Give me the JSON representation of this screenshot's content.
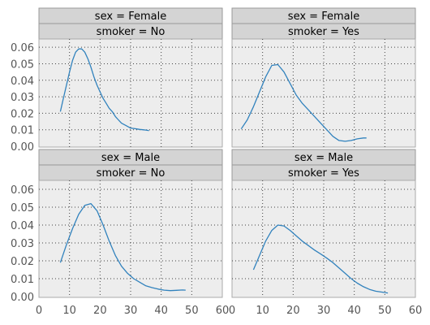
{
  "chart_data": {
    "type": "line",
    "layout": "facet-grid 2x2",
    "x_ticks": [
      0,
      10,
      20,
      30,
      40,
      50,
      60
    ],
    "y_ticks": [
      0.0,
      0.01,
      0.02,
      0.03,
      0.04,
      0.05,
      0.06
    ],
    "xlim": [
      0,
      60
    ],
    "ylim": [
      0,
      0.065
    ],
    "grid": "dotted",
    "line_color": "#3182bd",
    "panel_background": "#ededed",
    "strip_background": "#d4d4d4",
    "panels": [
      {
        "strip_row": "sex = Female",
        "strip_col": "smoker = No",
        "x": [
          7,
          8,
          9,
          10,
          11,
          12,
          13,
          14,
          15,
          16,
          17,
          18,
          19,
          20,
          21,
          22,
          23,
          24,
          25,
          26,
          27,
          28,
          29,
          30,
          31,
          32,
          33,
          34,
          35,
          36
        ],
        "y": [
          0.021,
          0.029,
          0.037,
          0.045,
          0.052,
          0.057,
          0.059,
          0.059,
          0.057,
          0.053,
          0.048,
          0.042,
          0.037,
          0.033,
          0.029,
          0.026,
          0.023,
          0.021,
          0.018,
          0.016,
          0.014,
          0.013,
          0.012,
          0.011,
          0.0108,
          0.0105,
          0.0102,
          0.01,
          0.0098,
          0.0095
        ]
      },
      {
        "strip_row": "sex = Female",
        "strip_col": "smoker = Yes",
        "x": [
          3,
          5,
          7,
          9,
          11,
          13,
          15,
          17,
          19,
          21,
          23,
          25,
          27,
          29,
          31,
          33,
          35,
          37,
          39,
          41,
          43,
          44
        ],
        "y": [
          0.0105,
          0.016,
          0.024,
          0.033,
          0.042,
          0.049,
          0.0495,
          0.045,
          0.038,
          0.031,
          0.026,
          0.022,
          0.018,
          0.014,
          0.01,
          0.006,
          0.0035,
          0.003,
          0.0035,
          0.0045,
          0.005,
          0.005
        ]
      },
      {
        "strip_row": "sex = Male",
        "strip_col": "smoker = No",
        "x": [
          7,
          9,
          11,
          13,
          15,
          17,
          19,
          21,
          23,
          25,
          27,
          29,
          31,
          33,
          35,
          37,
          39,
          41,
          43,
          45,
          47,
          48
        ],
        "y": [
          0.019,
          0.029,
          0.038,
          0.046,
          0.051,
          0.052,
          0.048,
          0.04,
          0.031,
          0.023,
          0.017,
          0.013,
          0.01,
          0.008,
          0.006,
          0.005,
          0.0042,
          0.0036,
          0.0033,
          0.0035,
          0.0037,
          0.0036
        ]
      },
      {
        "strip_row": "sex = Male",
        "strip_col": "smoker = Yes",
        "x": [
          7,
          9,
          11,
          13,
          15,
          17,
          19,
          21,
          23,
          25,
          27,
          29,
          31,
          33,
          35,
          37,
          39,
          41,
          43,
          45,
          47,
          49,
          51
        ],
        "y": [
          0.015,
          0.023,
          0.031,
          0.037,
          0.04,
          0.0395,
          0.037,
          0.034,
          0.031,
          0.0285,
          0.026,
          0.0238,
          0.0215,
          0.019,
          0.016,
          0.013,
          0.01,
          0.0075,
          0.0055,
          0.004,
          0.003,
          0.0025,
          0.002
        ]
      }
    ]
  }
}
